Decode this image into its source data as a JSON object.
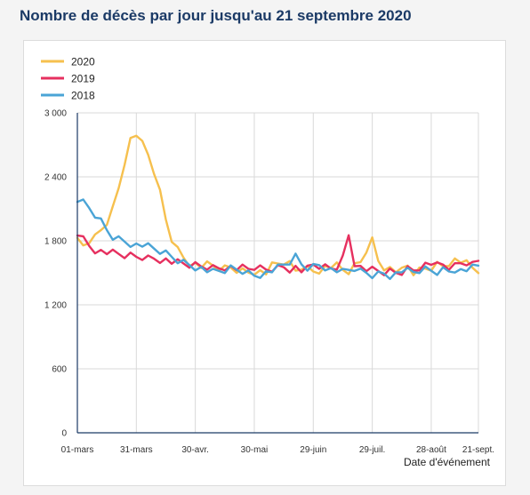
{
  "page": {
    "title": "Nombre de décès par jour jusqu'au 21 septembre 2020"
  },
  "chart_data": {
    "type": "line",
    "title": "Nombre de décès par jour jusqu'au 21 septembre 2020",
    "xlabel": "Date d'événement",
    "ylabel": "",
    "ylim": [
      0,
      3000
    ],
    "yticks": [
      0,
      600,
      1200,
      1800,
      2400,
      3000
    ],
    "ytick_labels": [
      "0",
      "600",
      "1 200",
      "1 800",
      "2 400",
      "3 000"
    ],
    "x_range_days": [
      0,
      204
    ],
    "xticks": [
      0,
      30,
      60,
      90,
      120,
      150,
      180,
      204
    ],
    "xtick_labels": [
      "01-mars",
      "31-mars",
      "30-avr.",
      "30-mai",
      "29-juin",
      "29-juil.",
      "28-août",
      "21-sept."
    ],
    "grid": true,
    "legend_position": "top-left",
    "series": [
      {
        "name": "2020",
        "color": "#f6c04e",
        "x": [
          0,
          3,
          6,
          9,
          12,
          15,
          18,
          21,
          24,
          27,
          30,
          33,
          36,
          39,
          42,
          45,
          48,
          51,
          54,
          57,
          60,
          63,
          66,
          69,
          72,
          75,
          78,
          81,
          84,
          87,
          90,
          93,
          96,
          99,
          102,
          105,
          108,
          111,
          114,
          117,
          120,
          123,
          126,
          129,
          132,
          135,
          138,
          141,
          144,
          147,
          150,
          153,
          156,
          159,
          162,
          165,
          168,
          171,
          174,
          177,
          180,
          183,
          186,
          189,
          192,
          195,
          198,
          201,
          204
        ],
        "values": [
          1790,
          1750,
          1800,
          1830,
          1900,
          1980,
          2100,
          2300,
          2550,
          2750,
          2800,
          2700,
          2600,
          2450,
          2250,
          2000,
          1820,
          1720,
          1650,
          1600,
          1580,
          1560,
          1570,
          1560,
          1540,
          1540,
          1550,
          1530,
          1520,
          1510,
          1520,
          1510,
          1500,
          1560,
          1580,
          1600,
          1580,
          1520,
          1560,
          1540,
          1520,
          1530,
          1550,
          1560,
          1560,
          1520,
          1510,
          1560,
          1600,
          1720,
          1810,
          1620,
          1560,
          1540,
          1520,
          1510,
          1560,
          1500,
          1520,
          1540,
          1550,
          1580,
          1570,
          1600,
          1620,
          1610,
          1580,
          1540,
          1520
        ]
      },
      {
        "name": "2019",
        "color": "#e6305f",
        "x": [
          0,
          3,
          6,
          9,
          12,
          15,
          18,
          21,
          24,
          27,
          30,
          33,
          36,
          39,
          42,
          45,
          48,
          51,
          54,
          57,
          60,
          63,
          66,
          69,
          72,
          75,
          78,
          81,
          84,
          87,
          90,
          93,
          96,
          99,
          102,
          105,
          108,
          111,
          114,
          117,
          120,
          123,
          126,
          129,
          132,
          135,
          138,
          141,
          144,
          147,
          150,
          153,
          156,
          159,
          162,
          165,
          168,
          171,
          174,
          177,
          180,
          183,
          186,
          189,
          192,
          195,
          198,
          201,
          204
        ],
        "values": [
          1880,
          1820,
          1760,
          1720,
          1700,
          1690,
          1680,
          1670,
          1660,
          1660,
          1650,
          1650,
          1640,
          1640,
          1630,
          1620,
          1600,
          1590,
          1580,
          1570,
          1570,
          1560,
          1560,
          1550,
          1550,
          1560,
          1550,
          1540,
          1540,
          1530,
          1550,
          1540,
          1530,
          1540,
          1550,
          1560,
          1540,
          1550,
          1520,
          1530,
          1570,
          1560,
          1550,
          1540,
          1560,
          1640,
          1860,
          1600,
          1550,
          1530,
          1520,
          1510,
          1500,
          1510,
          1500,
          1510,
          1540,
          1530,
          1560,
          1580,
          1590,
          1560,
          1570,
          1550,
          1560,
          1590,
          1600,
          1580,
          1620
        ]
      },
      {
        "name": "2018",
        "color": "#4aa4d6",
        "x": [
          0,
          3,
          6,
          9,
          12,
          15,
          18,
          21,
          24,
          27,
          30,
          33,
          36,
          39,
          42,
          45,
          48,
          51,
          54,
          57,
          60,
          63,
          66,
          69,
          72,
          75,
          78,
          81,
          84,
          87,
          90,
          93,
          96,
          99,
          102,
          105,
          108,
          111,
          114,
          117,
          120,
          123,
          126,
          129,
          132,
          135,
          138,
          141,
          144,
          147,
          150,
          153,
          156,
          159,
          162,
          165,
          168,
          171,
          174,
          177,
          180,
          183,
          186,
          189,
          192,
          195,
          198,
          201,
          204
        ],
        "values": [
          2180,
          2150,
          2100,
          2040,
          1980,
          1900,
          1840,
          1820,
          1800,
          1780,
          1760,
          1760,
          1740,
          1720,
          1700,
          1680,
          1650,
          1620,
          1600,
          1580,
          1560,
          1540,
          1520,
          1500,
          1510,
          1520,
          1540,
          1530,
          1520,
          1500,
          1480,
          1490,
          1500,
          1520,
          1540,
          1570,
          1600,
          1650,
          1580,
          1550,
          1560,
          1580,
          1560,
          1530,
          1520,
          1500,
          1520,
          1540,
          1510,
          1500,
          1480,
          1490,
          1500,
          1480,
          1490,
          1520,
          1510,
          1500,
          1520,
          1530,
          1520,
          1510,
          1530,
          1520,
          1540,
          1520,
          1530,
          1540,
          1560
        ]
      }
    ]
  }
}
